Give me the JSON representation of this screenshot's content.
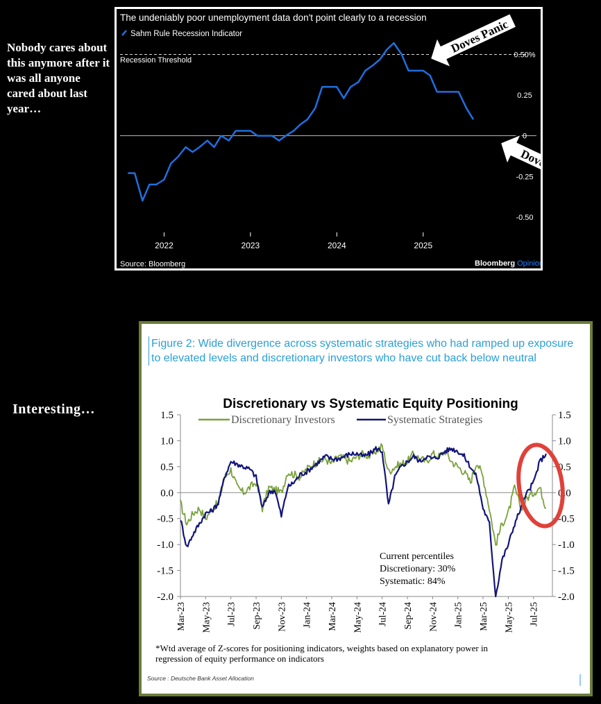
{
  "notes": {
    "top": "Nobody cares about this anymore after it was all anyone cared about last year…",
    "bottom": "Interesting…"
  },
  "chart_data": [
    {
      "type": "line",
      "title": "The undeniably poor unemployment data don't point clearly to a recession",
      "legend": [
        "Sahm Rule Recession Indicator"
      ],
      "threshold_label": "Recession Threshold",
      "threshold": 0.5,
      "ytick_labels": [
        "0.50%",
        "0.25",
        "0",
        "-0.25",
        "-0.50"
      ],
      "yticks": [
        0.5,
        0.25,
        0,
        -0.25,
        -0.5
      ],
      "xtick_labels": [
        "2022",
        "2023",
        "2024",
        "2025"
      ],
      "xticks": [
        2022,
        2023,
        2024,
        2025
      ],
      "xlim": [
        2021.45,
        2025.95
      ],
      "ylim": [
        -0.62,
        0.6
      ],
      "source": "Source: Bloomberg",
      "brand": "Bloomberg",
      "brand_accent": "Opinion",
      "series": [
        {
          "name": "Sahm Rule Recession Indicator",
          "x": [
            2021.58,
            2021.66,
            2021.75,
            2021.83,
            2021.91,
            2022.0,
            2022.08,
            2022.16,
            2022.25,
            2022.33,
            2022.41,
            2022.5,
            2022.58,
            2022.66,
            2022.75,
            2022.83,
            2022.91,
            2023.0,
            2023.08,
            2023.16,
            2023.25,
            2023.33,
            2023.41,
            2023.5,
            2023.58,
            2023.66,
            2023.75,
            2023.83,
            2023.91,
            2024.0,
            2024.08,
            2024.16,
            2024.25,
            2024.33,
            2024.41,
            2024.5,
            2024.58,
            2024.66,
            2024.75,
            2024.83,
            2024.91,
            2025.0,
            2025.08,
            2025.16,
            2025.25,
            2025.33,
            2025.41,
            2025.5,
            2025.58
          ],
          "values": [
            -0.23,
            -0.23,
            -0.4,
            -0.3,
            -0.3,
            -0.27,
            -0.17,
            -0.13,
            -0.07,
            -0.1,
            -0.07,
            -0.03,
            -0.07,
            0.0,
            -0.03,
            0.03,
            0.03,
            0.03,
            0.0,
            0.0,
            0.0,
            -0.03,
            0.0,
            0.03,
            0.07,
            0.1,
            0.17,
            0.3,
            0.3,
            0.3,
            0.23,
            0.3,
            0.33,
            0.4,
            0.43,
            0.47,
            0.53,
            0.57,
            0.5,
            0.4,
            0.4,
            0.4,
            0.37,
            0.27,
            0.27,
            0.27,
            0.27,
            0.17,
            0.1
          ]
        }
      ],
      "annotations": [
        "Doves Panic",
        "Doves Panic"
      ]
    },
    {
      "type": "line",
      "figure_caption": "Figure 2: Wide divergence across systematic strategies who had ramped up exposure to elevated levels and discretionary investors who have cut back below neutral",
      "title": "Discretionary  vs Systematic Equity Positioning",
      "legend": [
        "Discretionary Investors",
        "Systematic Strategies"
      ],
      "ytick_labels": [
        "1.5",
        "1.0",
        "0.5",
        "0.0",
        "-0.5",
        "-1.0",
        "-1.5",
        "-2.0"
      ],
      "yticks": [
        1.5,
        1.0,
        0.5,
        0.0,
        -0.5,
        -1.0,
        -1.5,
        -2.0
      ],
      "ylim": [
        -2.0,
        1.5
      ],
      "xtick_labels": [
        "Mar-23",
        "May-23",
        "Jul-23",
        "Sep-23",
        "Nov-23",
        "Jan-24",
        "Mar-24",
        "May-24",
        "Jul-24",
        "Sep-24",
        "Nov-24",
        "Jan-25",
        "Mar-25",
        "May-25",
        "Jul-25"
      ],
      "xticks": [
        0,
        2,
        4,
        6,
        8,
        10,
        12,
        14,
        16,
        18,
        20,
        22,
        24,
        26,
        28
      ],
      "xlim": [
        0,
        29.5
      ],
      "series": [
        {
          "name": "Discretionary Investors",
          "x": [
            0,
            0.5,
            1,
            1.5,
            2,
            2.5,
            3,
            3.5,
            4,
            4.5,
            5,
            5.5,
            6,
            6.5,
            7,
            7.5,
            8,
            8.5,
            9,
            9.5,
            10,
            10.5,
            11,
            11.5,
            12,
            12.5,
            13,
            13.5,
            14,
            14.5,
            15,
            15.5,
            16,
            16.5,
            17,
            17.5,
            18,
            18.5,
            19,
            19.5,
            20,
            20.5,
            21,
            21.5,
            22,
            22.5,
            23,
            23.5,
            24,
            24.5,
            25,
            25.5,
            26,
            26.5,
            27,
            27.5,
            28,
            28.5,
            29
          ],
          "values": [
            -0.2,
            -0.6,
            -0.4,
            -0.3,
            -0.5,
            -0.3,
            -0.2,
            0.3,
            0.45,
            0.1,
            0.0,
            0.1,
            0.2,
            -0.3,
            0.1,
            0.05,
            0.0,
            0.4,
            0.35,
            0.3,
            0.45,
            0.55,
            0.6,
            0.65,
            0.55,
            0.7,
            0.65,
            0.6,
            0.7,
            0.75,
            0.7,
            0.8,
            0.9,
            0.4,
            0.5,
            0.55,
            0.6,
            0.75,
            0.65,
            0.6,
            0.75,
            0.7,
            0.8,
            0.6,
            0.5,
            0.4,
            0.2,
            0.6,
            0.3,
            -0.3,
            -1.0,
            -0.6,
            -0.4,
            0.1,
            -0.3,
            -0.1,
            0.0,
            0.1,
            -0.3
          ]
        },
        {
          "name": "Systematic Strategies",
          "x": [
            0,
            0.5,
            1,
            1.5,
            2,
            2.5,
            3,
            3.5,
            4,
            4.5,
            5,
            5.5,
            6,
            6.5,
            7,
            7.5,
            8,
            8.5,
            9,
            9.5,
            10,
            10.5,
            11,
            11.5,
            12,
            12.5,
            13,
            13.5,
            14,
            14.5,
            15,
            15.5,
            16,
            16.5,
            17,
            17.5,
            18,
            18.5,
            19,
            19.5,
            20,
            20.5,
            21,
            21.5,
            22,
            22.5,
            23,
            23.5,
            24,
            24.5,
            25,
            25.5,
            26,
            26.5,
            27,
            27.5,
            28,
            28.5,
            29
          ],
          "values": [
            -0.5,
            -1.05,
            -0.8,
            -0.6,
            -0.4,
            -0.35,
            -0.2,
            0.3,
            0.6,
            0.55,
            0.5,
            0.45,
            0.3,
            -0.3,
            0.0,
            0.05,
            -0.45,
            0.1,
            0.2,
            0.35,
            0.4,
            0.5,
            0.6,
            0.7,
            0.65,
            0.65,
            0.7,
            0.75,
            0.75,
            0.7,
            0.75,
            0.85,
            0.8,
            -0.25,
            0.3,
            0.5,
            0.6,
            0.7,
            0.6,
            0.7,
            0.65,
            0.7,
            0.8,
            0.85,
            0.8,
            0.7,
            0.5,
            0.3,
            -0.3,
            -0.6,
            -2.0,
            -1.3,
            -1.0,
            -0.6,
            -0.3,
            0.0,
            0.2,
            0.6,
            0.75
          ]
        }
      ],
      "annotation": {
        "heading": "Current percentiles",
        "line1": "Discretionary: 30%",
        "line2": "Systematic: 84%"
      },
      "footnote": "*Wtd average of Z-scores for positioning indicators, weights based on explanatory power in regression of equity performance on indicators",
      "source": "Source : Deutsche Bank Asset Allocation"
    }
  ],
  "colors": {
    "sahm_line": "#1f6fe0",
    "discretionary": "#7aa13a",
    "systematic": "#12147a",
    "circle": "#e0413a",
    "caption": "#2a9fd6",
    "border": "#6b7d3a"
  }
}
